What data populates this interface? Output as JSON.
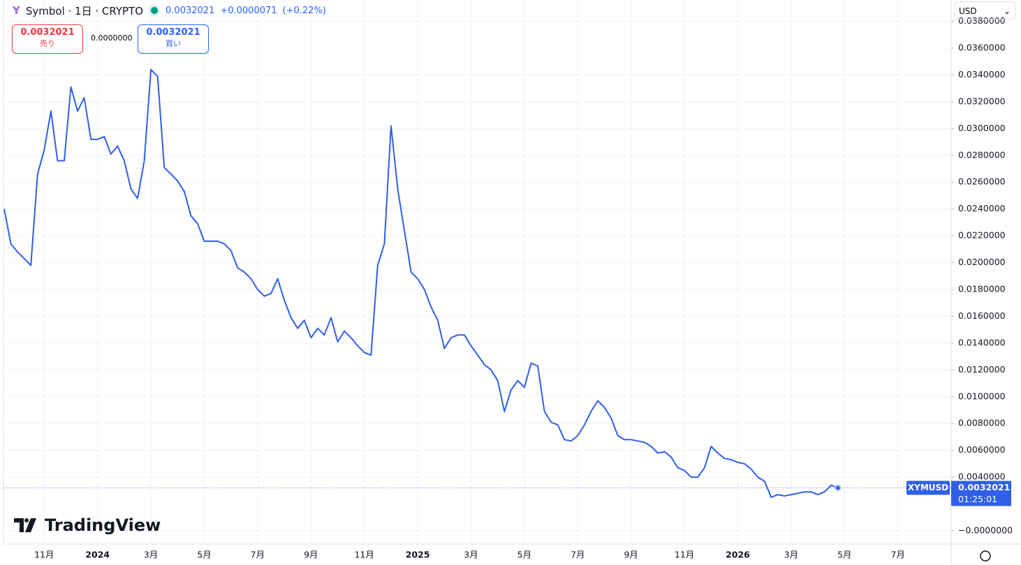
{
  "header": {
    "symbol": "Symbol · 1日 · CRYPTO",
    "change": "+0.0000071",
    "change_pct": "(+0.22%)"
  },
  "trade": {
    "sell_price": "0.0032021",
    "sell_label": "売り",
    "spread": "0.0000000",
    "buy_price": "0.0032021",
    "buy_label": "買い"
  },
  "currency": "USD",
  "countdown": "01:25:01",
  "logo": "TradingView",
  "chart_data": {
    "type": "line",
    "categories": [
      null,
      null,
      null,
      null,
      null,
      null,
      "11月",
      null,
      null,
      null,
      null,
      null,
      null,
      null,
      "2024",
      null,
      null,
      null,
      null,
      null,
      null,
      null,
      "3月",
      null,
      null,
      null,
      null,
      null,
      null,
      null,
      "5月",
      null,
      null,
      null,
      null,
      null,
      null,
      null,
      "7月",
      null,
      null,
      null,
      null,
      null,
      null,
      null,
      "9月",
      null,
      null,
      null,
      null,
      null,
      null,
      null,
      "11月",
      null,
      null,
      null,
      null,
      null,
      null,
      null,
      "2025",
      null,
      null,
      null,
      null,
      null,
      null,
      null,
      "3月",
      null,
      null,
      null,
      null,
      null,
      null,
      null,
      "5月",
      null,
      null,
      null,
      null,
      null,
      null,
      null,
      "7月",
      null,
      null,
      null,
      null,
      null,
      null,
      null,
      "9月",
      null,
      null,
      null,
      null,
      null,
      null,
      null,
      "11月",
      null,
      null,
      null,
      null,
      null,
      null,
      null,
      "2026",
      null,
      null,
      null,
      null,
      null,
      null,
      null,
      "3月",
      null,
      null,
      null,
      null,
      null,
      null,
      null,
      "5月",
      null,
      null,
      null,
      null,
      null,
      null,
      null,
      "7月",
      null,
      null,
      null,
      null,
      null,
      null,
      null,
      null,
      null
    ],
    "series": [
      {
        "name": "XYMUSD",
        "color": "#2f5fe8",
        "values": [
          0.024,
          0.0214,
          0.0208,
          0.0203,
          0.0198,
          0.0266,
          0.0284,
          0.0313,
          0.0276,
          0.0276,
          0.0331,
          0.0313,
          0.0323,
          0.0292,
          0.0292,
          0.0294,
          0.0281,
          0.0287,
          0.0276,
          0.0255,
          0.0248,
          0.0276,
          0.0344,
          0.0339,
          0.0271,
          0.0266,
          0.0261,
          0.0253,
          0.0235,
          0.0229,
          0.0216,
          0.0216,
          0.0216,
          0.0214,
          0.0209,
          0.0196,
          0.0193,
          0.0188,
          0.018,
          0.0175,
          0.0177,
          0.0188,
          0.0172,
          0.0159,
          0.0151,
          0.0157,
          0.0144,
          0.0151,
          0.0146,
          0.0159,
          0.0141,
          0.0149,
          0.0144,
          0.0138,
          0.0133,
          0.0131,
          0.0198,
          0.0214,
          0.0302,
          0.0255,
          0.0224,
          0.0193,
          0.0188,
          0.018,
          0.0167,
          0.0157,
          0.0136,
          0.0144,
          0.0146,
          0.0146,
          0.0138,
          0.0131,
          0.0124,
          0.012,
          0.0112,
          0.0089,
          0.0105,
          0.0112,
          0.0107,
          0.0125,
          0.0123,
          0.0089,
          0.0081,
          0.0079,
          0.0068,
          0.0067,
          0.0071,
          0.0079,
          0.0089,
          0.0097,
          0.0092,
          0.0084,
          0.0071,
          0.0068,
          0.0068,
          0.0067,
          0.0066,
          0.0063,
          0.0058,
          0.0059,
          0.0055,
          0.0047,
          0.0045,
          0.004,
          0.004,
          0.0047,
          0.0063,
          0.0058,
          0.0054,
          0.0053,
          0.0051,
          0.005,
          0.0046,
          0.004,
          0.0037,
          0.0025,
          0.0027,
          0.0026,
          0.0027,
          0.0028,
          0.0029,
          0.0029,
          0.0027,
          0.0029,
          0.0034,
          0.0032021,
          null,
          null,
          null,
          null,
          null,
          null,
          null,
          null,
          null,
          null,
          null,
          null,
          null,
          null,
          null,
          null,
          null,
          null
        ]
      }
    ],
    "ylim": [
      -0.00099,
      0.03959
    ],
    "yticks": [
      {
        "value": 0.038,
        "label": "0.0380000"
      },
      {
        "value": 0.036,
        "label": "0.0360000"
      },
      {
        "value": 0.034,
        "label": "0.0340000"
      },
      {
        "value": 0.032,
        "label": "0.0320000"
      },
      {
        "value": 0.03,
        "label": "0.0300000"
      },
      {
        "value": 0.028,
        "label": "0.0280000"
      },
      {
        "value": 0.026,
        "label": "0.0260000"
      },
      {
        "value": 0.024,
        "label": "0.0240000"
      },
      {
        "value": 0.022,
        "label": "0.0220000"
      },
      {
        "value": 0.02,
        "label": "0.0200000"
      },
      {
        "value": 0.018,
        "label": "0.0180000"
      },
      {
        "value": 0.016,
        "label": "0.0160000"
      },
      {
        "value": 0.014,
        "label": "0.0140000"
      },
      {
        "value": 0.012,
        "label": "0.0120000"
      },
      {
        "value": 0.01,
        "label": "0.0100000"
      },
      {
        "value": 0.008,
        "label": "0.0080000"
      },
      {
        "value": 0.006,
        "label": "0.0060000"
      },
      {
        "value": 0.004,
        "label": "0.0040000"
      },
      {
        "value": 0,
        "label": "−0.0000000"
      }
    ],
    "grid": true
  }
}
